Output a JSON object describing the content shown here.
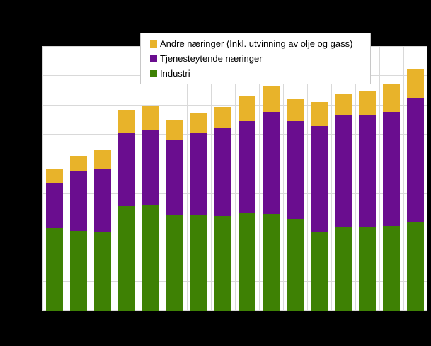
{
  "figure": {
    "background_color": "#000000",
    "plot_background_color": "#ffffff",
    "gridline_color": "#d9d9d9",
    "legend_border_color": "#c8c8c8"
  },
  "legend": {
    "items": [
      {
        "label": "Andre næringer (Inkl. utvinning av olje og gass)",
        "color": "#e8b32a"
      },
      {
        "label": "Tjenesteytende næringer",
        "color": "#6a0d8f"
      },
      {
        "label": "Industri",
        "color": "#3e8104"
      }
    ]
  },
  "chart_data": {
    "type": "bar",
    "stacked": true,
    "bar_count": 16,
    "title": "",
    "xlabel": "",
    "ylabel": "",
    "x_tick_labels_visible": false,
    "y_tick_labels_visible": false,
    "grid": true,
    "y_divisions": 9,
    "ylim": [
      0,
      450
    ],
    "y_gridline_step": 50,
    "legend_position": "top-center",
    "series": [
      {
        "name": "Industri",
        "color": "#3e8104",
        "values": [
          141,
          135,
          134,
          177,
          180,
          163,
          163,
          160,
          165,
          164,
          156,
          134,
          142,
          142,
          144,
          151
        ]
      },
      {
        "name": "Tjenesteytende næringer",
        "color": "#6a0d8f",
        "values": [
          76,
          103,
          106,
          124,
          127,
          127,
          140,
          150,
          158,
          174,
          168,
          180,
          191,
          191,
          194,
          211
        ]
      },
      {
        "name": "Andre næringer (Inkl. utvinning av olje og gass)",
        "color": "#e8b32a",
        "values": [
          23,
          25,
          34,
          40,
          41,
          35,
          33,
          36,
          41,
          43,
          37,
          41,
          35,
          40,
          48,
          49
        ]
      }
    ]
  }
}
